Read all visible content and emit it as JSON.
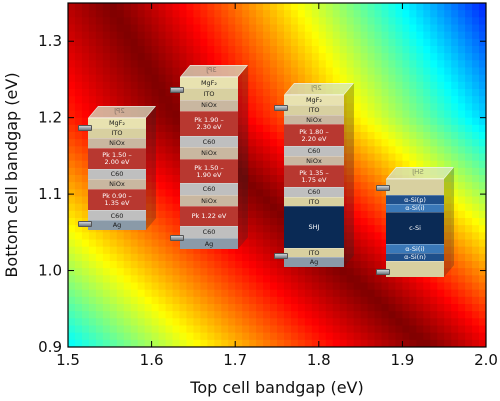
{
  "chart_data": {
    "type": "heatmap",
    "xlabel": "Top cell bandgap (eV)",
    "ylabel": "Bottom cell bandgap (eV)",
    "xlim": [
      1.5,
      2.0
    ],
    "ylim": [
      0.9,
      1.35
    ],
    "x_ticks": [
      "1.5",
      "1.6",
      "1.7",
      "1.8",
      "1.9",
      "2.0"
    ],
    "y_ticks": [
      "0.9",
      "1.0",
      "1.1",
      "1.2",
      "1.3"
    ],
    "colormap": "jet",
    "optimum_ridge_x_at_y": [
      [
        1.55,
        1.35
      ],
      [
        1.63,
        1.2
      ],
      [
        1.73,
        1.1
      ],
      [
        1.83,
        1.0
      ],
      [
        1.93,
        0.9
      ]
    ]
  },
  "devices": [
    {
      "label": "2PJ",
      "layers": [
        {
          "text": "MgF₂",
          "color": "#e8e2b0"
        },
        {
          "text": "ITO",
          "color": "#d8d0a0"
        },
        {
          "text": "NiOx",
          "color": "#c9b7a0"
        },
        {
          "text": "Pk 1.50 –\n2.00 eV",
          "color": "#b83830"
        },
        {
          "text": "C60",
          "color": "#bfbfbf"
        },
        {
          "text": "NiOx",
          "color": "#c9b7a0"
        },
        {
          "text": "Pk 0.90 –\n1.35 eV",
          "color": "#b83830"
        },
        {
          "text": "C60",
          "color": "#bfbfbf"
        },
        {
          "text": "Ag",
          "color": "#8a9aa8"
        }
      ]
    },
    {
      "label": "3PJ",
      "layers": [
        {
          "text": "MgF₂",
          "color": "#e8e2b0"
        },
        {
          "text": "ITO",
          "color": "#d8d0a0"
        },
        {
          "text": "NiOx",
          "color": "#c9b7a0"
        },
        {
          "text": "Pk 1.90 –\n2.30 eV",
          "color": "#b83830"
        },
        {
          "text": "C60",
          "color": "#bfbfbf"
        },
        {
          "text": "NiOx",
          "color": "#c9b7a0"
        },
        {
          "text": "Pk 1.50 –\n1.90 eV",
          "color": "#b83830"
        },
        {
          "text": "C60",
          "color": "#bfbfbf"
        },
        {
          "text": "NiOx",
          "color": "#c9b7a0"
        },
        {
          "text": "Pk 1.22 eV",
          "color": "#b83830"
        },
        {
          "text": "C60",
          "color": "#bfbfbf"
        },
        {
          "text": "Ag",
          "color": "#8a9aa8"
        }
      ]
    },
    {
      "label": "2PJ",
      "layers": [
        {
          "text": "MgF₂",
          "color": "#e8e2b0"
        },
        {
          "text": "ITO",
          "color": "#d8d0a0"
        },
        {
          "text": "NiOx",
          "color": "#c9b7a0"
        },
        {
          "text": "Pk 1.80 –\n2.20 eV",
          "color": "#b83830"
        },
        {
          "text": "C60",
          "color": "#bfbfbf"
        },
        {
          "text": "NiOx",
          "color": "#c9b7a0"
        },
        {
          "text": "Pk 1.35 –\n1.75 eV",
          "color": "#b83830"
        },
        {
          "text": "C60",
          "color": "#bfbfbf"
        },
        {
          "text": "ITO",
          "color": "#d8d0a0"
        },
        {
          "text": "SHJ",
          "color": "#0a2a55"
        },
        {
          "text": "ITO",
          "color": "#d8d0a0"
        },
        {
          "text": "Ag",
          "color": "#8a9aa8"
        }
      ]
    },
    {
      "label": "SHJ",
      "layers": [
        {
          "text": "",
          "color": "#d8d0a0"
        },
        {
          "text": "α-Si(p)",
          "color": "#1f4f8a"
        },
        {
          "text": "α-Si(i)",
          "color": "#3a78b8"
        },
        {
          "text": "c-Si",
          "color": "#0a2a55"
        },
        {
          "text": "α-Si(i)",
          "color": "#3a78b8"
        },
        {
          "text": "α-Si(n)",
          "color": "#1f4f8a"
        },
        {
          "text": "",
          "color": "#d8d0a0"
        }
      ]
    }
  ]
}
